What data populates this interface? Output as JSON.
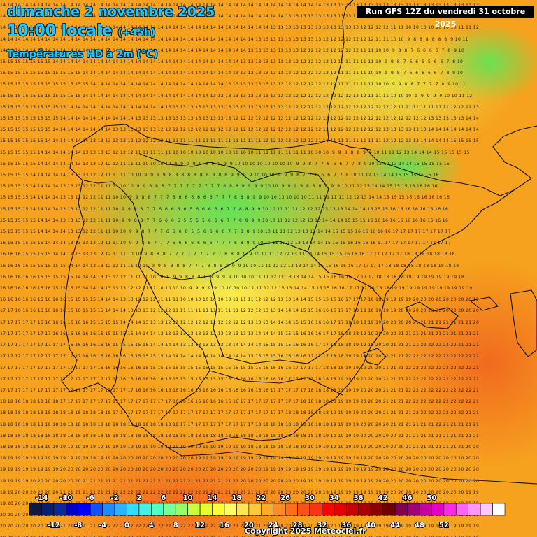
{
  "header": {
    "date_line": "dimanche 2 novembre 2025",
    "time_line": "10:00 locale",
    "lead_time": "(+45h)",
    "product": "Températures HD à 2m (°C)",
    "run": "Run GFS 12Z du vendredi 31 octobre 2025"
  },
  "legend": {
    "top_labels": [
      "-14",
      "-10",
      "-6",
      "-2",
      "2",
      "6",
      "10",
      "14",
      "18",
      "22",
      "26",
      "30",
      "34",
      "38",
      "42",
      "46",
      "50"
    ],
    "bottom_labels": [
      "-12",
      "-8",
      "-4",
      "0",
      "4",
      "8",
      "12",
      "16",
      "20",
      "24",
      "28",
      "32",
      "36",
      "40",
      "44",
      "48",
      "52"
    ],
    "colors": [
      "#101840",
      "#0a1e6e",
      "#0a2a9c",
      "#0000c8",
      "#0000ff",
      "#1450ff",
      "#1e8cff",
      "#28b4ff",
      "#32dcff",
      "#46f0e6",
      "#50ffc8",
      "#78ff96",
      "#96ff64",
      "#c8ff3c",
      "#e6ff28",
      "#ffff32",
      "#ffff64",
      "#ffe650",
      "#ffc83c",
      "#ffaa28",
      "#ff8c1e",
      "#ff6e14",
      "#ff5014",
      "#ff3214",
      "#ff0000",
      "#e60000",
      "#c80000",
      "#aa0000",
      "#8c0000",
      "#6e0000",
      "#820050",
      "#a00078",
      "#c800a0",
      "#e600c8",
      "#ff28e6",
      "#ff64f0",
      "#ff96f5",
      "#ffc8fa",
      "#ffffff"
    ]
  },
  "copyright": "Copyright 2025 Meteociel.fr"
}
